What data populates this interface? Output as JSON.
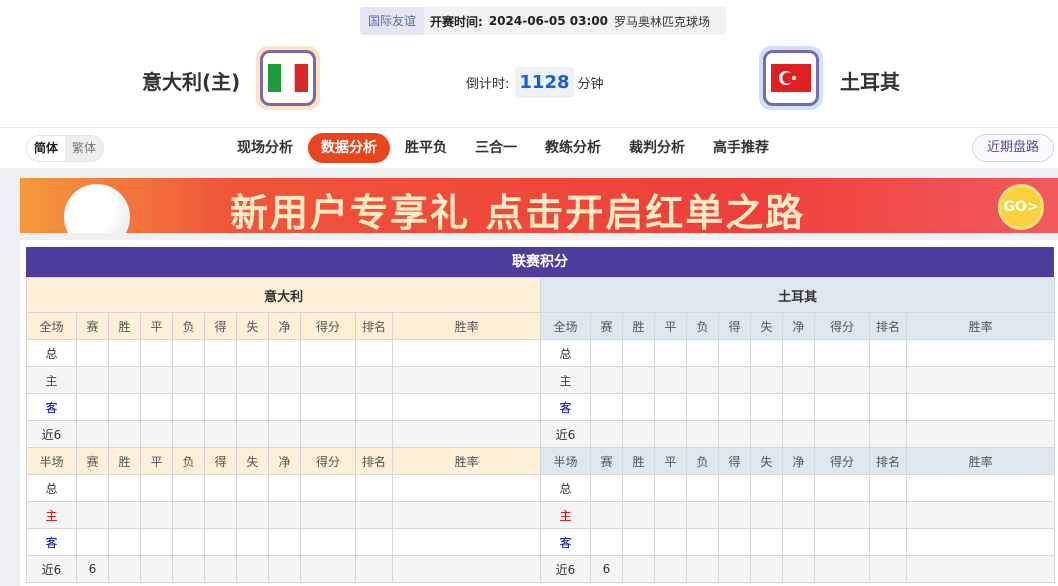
{
  "match": {
    "league": "国际友谊",
    "time_label": "开赛时间:",
    "time": "2024-06-05 03:00",
    "venue": "罗马奥林匹克球场",
    "home": "意大利(主)",
    "away": "土耳其",
    "countdown_label": "倒计时:",
    "countdown_value": "1128",
    "countdown_unit": "分钟"
  },
  "nav": {
    "lang": [
      "简体",
      "繁体"
    ],
    "tabs": [
      "现场分析",
      "数据分析",
      "胜平负",
      "三合一",
      "教练分析",
      "裁判分析",
      "高手推荐"
    ],
    "active_tab": "数据分析",
    "recent": "近期盘路"
  },
  "banner": {
    "text": "新用户专享礼 点击开启红单之路",
    "go": "GO>"
  },
  "standings": {
    "title": "联赛积分",
    "columns": [
      "赛",
      "胜",
      "平",
      "负",
      "得",
      "失",
      "净",
      "得分",
      "排名",
      "胜率"
    ],
    "teams": [
      {
        "name": "意大利",
        "sections": [
          {
            "label": "全场",
            "rows": [
              {
                "label": "总",
                "cells": [
                  "",
                  "",
                  "",
                  "",
                  "",
                  "",
                  "",
                  "",
                  "",
                  ""
                ]
              },
              {
                "label": "主",
                "cells": [
                  "",
                  "",
                  "",
                  "",
                  "",
                  "",
                  "",
                  "",
                  "",
                  ""
                ]
              },
              {
                "label": "客",
                "cells": [
                  "",
                  "",
                  "",
                  "",
                  "",
                  "",
                  "",
                  "",
                  "",
                  ""
                ]
              },
              {
                "label": "近6",
                "cells": [
                  "",
                  "",
                  "",
                  "",
                  "",
                  "",
                  "",
                  "",
                  "",
                  ""
                ]
              }
            ]
          },
          {
            "label": "半场",
            "rows": [
              {
                "label": "总",
                "cells": [
                  "",
                  "",
                  "",
                  "",
                  "",
                  "",
                  "",
                  "",
                  "",
                  ""
                ]
              },
              {
                "label": "主",
                "cells": [
                  "",
                  "",
                  "",
                  "",
                  "",
                  "",
                  "",
                  "",
                  "",
                  ""
                ]
              },
              {
                "label": "客",
                "cells": [
                  "",
                  "",
                  "",
                  "",
                  "",
                  "",
                  "",
                  "",
                  "",
                  ""
                ]
              },
              {
                "label": "近6",
                "cells": [
                  "6",
                  "",
                  "",
                  "",
                  "",
                  "",
                  "",
                  "",
                  "",
                  ""
                ]
              }
            ]
          }
        ]
      },
      {
        "name": "土耳其",
        "sections": [
          {
            "label": "全场",
            "rows": [
              {
                "label": "总",
                "cells": [
                  "",
                  "",
                  "",
                  "",
                  "",
                  "",
                  "",
                  "",
                  "",
                  ""
                ]
              },
              {
                "label": "主",
                "cells": [
                  "",
                  "",
                  "",
                  "",
                  "",
                  "",
                  "",
                  "",
                  "",
                  ""
                ]
              },
              {
                "label": "客",
                "cells": [
                  "",
                  "",
                  "",
                  "",
                  "",
                  "",
                  "",
                  "",
                  "",
                  ""
                ]
              },
              {
                "label": "近6",
                "cells": [
                  "",
                  "",
                  "",
                  "",
                  "",
                  "",
                  "",
                  "",
                  "",
                  ""
                ]
              }
            ]
          },
          {
            "label": "半场",
            "rows": [
              {
                "label": "总",
                "cells": [
                  "",
                  "",
                  "",
                  "",
                  "",
                  "",
                  "",
                  "",
                  "",
                  ""
                ]
              },
              {
                "label": "主",
                "cells": [
                  "",
                  "",
                  "",
                  "",
                  "",
                  "",
                  "",
                  "",
                  "",
                  ""
                ]
              },
              {
                "label": "客",
                "cells": [
                  "",
                  "",
                  "",
                  "",
                  "",
                  "",
                  "",
                  "",
                  "",
                  ""
                ]
              },
              {
                "label": "近6",
                "cells": [
                  "6",
                  "",
                  "",
                  "",
                  "",
                  "",
                  "",
                  "",
                  "",
                  ""
                ]
              }
            ]
          }
        ]
      }
    ]
  },
  "colors": {
    "accent": "#e8451c",
    "title_bar": "#4f3d9b",
    "home_label": "#dd0000",
    "away_label": "#0000aa"
  }
}
